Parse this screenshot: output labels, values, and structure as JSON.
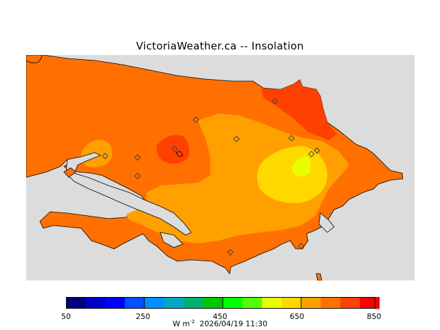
{
  "title": "VictoriaWeather.ca -- Insolation",
  "colorbar": {
    "ticks": [
      "50",
      "250",
      "450",
      "650",
      "850"
    ],
    "colors": [
      "#000080",
      "#0000c8",
      "#0000ff",
      "#0050ff",
      "#0090ff",
      "#00a8c8",
      "#00b070",
      "#00c800",
      "#00ff00",
      "#50ff00",
      "#e8ff00",
      "#ffd800",
      "#ffa000",
      "#ff7000",
      "#ff4000",
      "#ff0000"
    ]
  },
  "footer": {
    "unit_base": "W m",
    "unit_exp": "-2",
    "timestamp": "2026/04/19 11:30"
  },
  "map": {
    "field_colors": {
      "ocean": "#dcdcdc",
      "land_700": "#ff7000",
      "land_650": "#ffa000",
      "land_600": "#ffd800",
      "land_550": "#e8ff00",
      "land_750": "#ff4000"
    },
    "stations": [
      "station",
      "station",
      "station",
      "station",
      "station",
      "station",
      "station",
      "station",
      "station",
      "station",
      "station",
      "station"
    ]
  }
}
